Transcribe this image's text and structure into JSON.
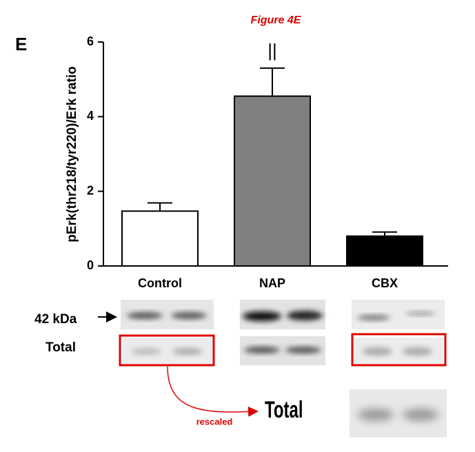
{
  "chart_data": {
    "type": "bar",
    "title": "Figure 4E",
    "panel_label": "E",
    "y_label": "pErk(thr218/tyr220)/Erk ratio",
    "categories": [
      "Control",
      "NAP",
      "CBX"
    ],
    "values": [
      1.47,
      4.55,
      0.8
    ],
    "errors": [
      0.22,
      0.75,
      0.11
    ],
    "colors": [
      "#ffffff",
      "#808080",
      "#000000"
    ],
    "significance_labels": [
      null,
      "||",
      null
    ],
    "ylim": [
      0,
      6
    ],
    "yticks": [
      0,
      2,
      4,
      6
    ]
  },
  "blot": {
    "band_label": "42 kDa",
    "total_label": "Total",
    "annotation": "rescaled",
    "rescaled_label": "Total"
  }
}
